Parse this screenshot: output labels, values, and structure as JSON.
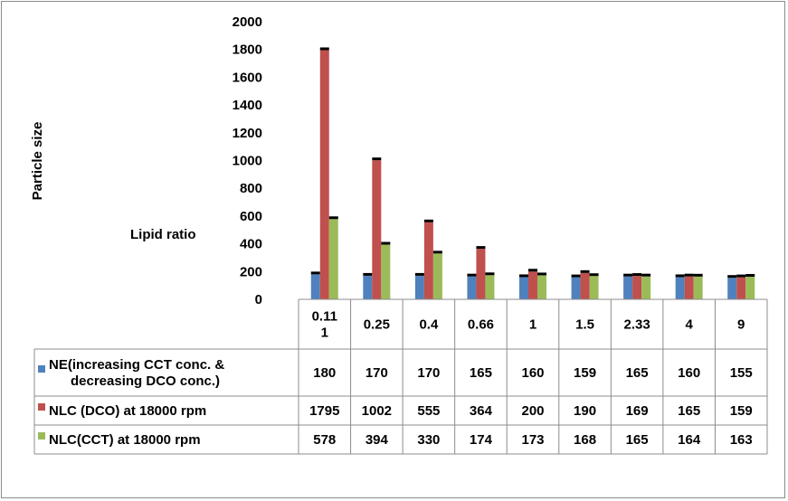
{
  "chart_data": {
    "type": "bar",
    "ylabel": "Particle size",
    "xlabel": "Lipid ratio",
    "ylim": [
      0,
      2000
    ],
    "yticks": [
      0,
      200,
      400,
      600,
      800,
      1000,
      1200,
      1400,
      1600,
      1800,
      2000
    ],
    "categories": [
      "0.11\n1",
      "0.25",
      "0.4",
      "0.66",
      "1",
      "1.5",
      "2.33",
      "4",
      "9"
    ],
    "series": [
      {
        "name": "NE(increasing CCT conc. & decreasing DCO conc.)",
        "color": "#4f81bd",
        "values": [
          180,
          170,
          170,
          165,
          160,
          159,
          165,
          160,
          155
        ]
      },
      {
        "name": "NLC (DCO) at 18000 rpm",
        "color": "#c0504d",
        "values": [
          1795,
          1002,
          555,
          364,
          200,
          190,
          169,
          165,
          159
        ]
      },
      {
        "name": "NLC(CCT) at 18000 rpm",
        "color": "#9bbb59",
        "values": [
          578,
          394,
          330,
          174,
          173,
          168,
          165,
          164,
          163
        ]
      }
    ],
    "legend": "table",
    "grid": false
  }
}
